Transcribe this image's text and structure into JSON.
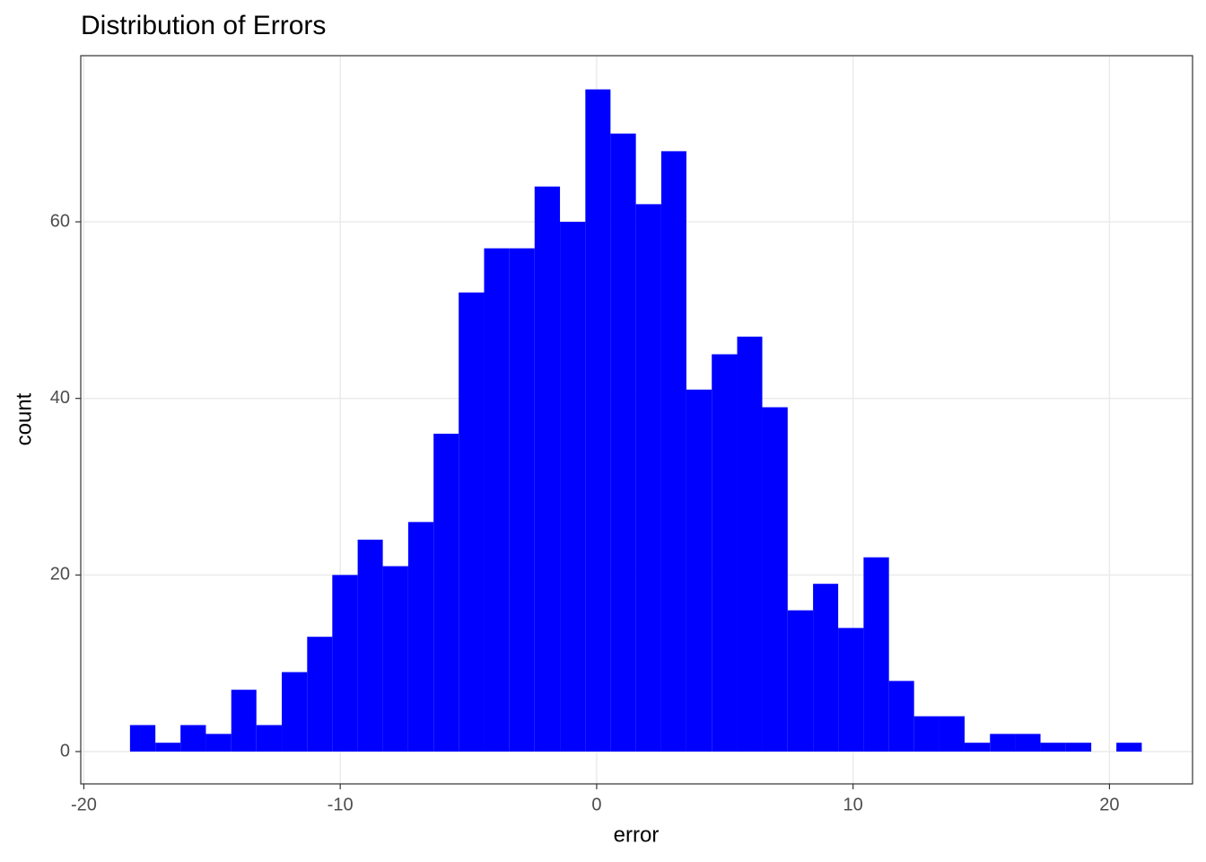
{
  "chart_data": {
    "type": "histogram",
    "title": "Distribution of Errors",
    "x_label": "error",
    "y_label": "count",
    "bins": [
      -18.2,
      -17.21,
      -16.23,
      -15.24,
      -14.25,
      -13.27,
      -12.28,
      -11.29,
      -10.31,
      -9.32,
      -8.34,
      -7.35,
      -6.36,
      -5.38,
      -4.39,
      -3.4,
      -2.42,
      -1.43,
      -0.44,
      0.54,
      1.53,
      2.52,
      3.5,
      4.49,
      5.48,
      6.46,
      7.45,
      8.44,
      9.42,
      10.41,
      11.4,
      12.38,
      13.37,
      14.35,
      15.34,
      16.33,
      17.31,
      18.3,
      19.29,
      20.27,
      21.26
    ],
    "values": [
      3,
      1,
      3,
      2,
      7,
      3,
      9,
      13,
      20,
      24,
      21,
      26,
      36,
      52,
      57,
      57,
      64,
      60,
      75,
      70,
      62,
      68,
      41,
      45,
      47,
      39,
      16,
      19,
      14,
      22,
      8,
      4,
      4,
      1,
      2,
      2,
      1,
      1,
      0,
      1
    ],
    "color": "#0000ff",
    "xlim": [
      -20.12,
      23.24
    ],
    "xticks": [
      -20,
      -10,
      0,
      10,
      20
    ],
    "ylim": [
      -3.66,
      78.82
    ],
    "yticks": [
      0,
      20,
      40,
      60
    ],
    "grid": true
  }
}
